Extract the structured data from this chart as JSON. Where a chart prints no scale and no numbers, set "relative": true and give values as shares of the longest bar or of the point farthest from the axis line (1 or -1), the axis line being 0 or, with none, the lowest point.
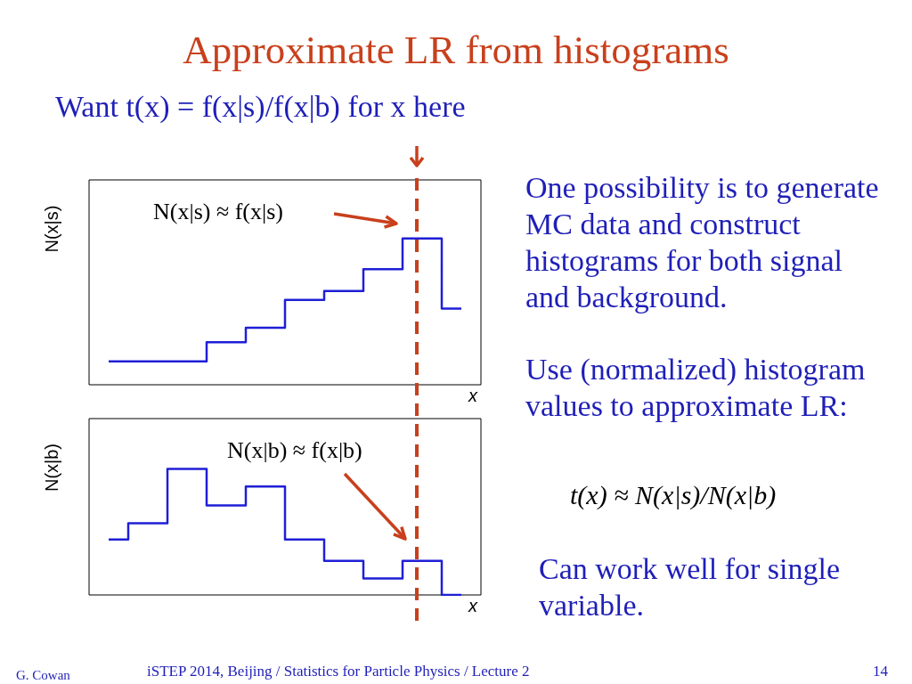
{
  "chart_data": [
    {
      "type": "step",
      "relative": true,
      "categories": [
        null,
        null,
        null,
        null,
        null,
        null,
        null,
        null,
        null,
        null
      ],
      "values": [
        0.16,
        0.16,
        0.16,
        0.29,
        0.39,
        0.58,
        0.64,
        0.79,
        1,
        0.52
      ],
      "color": "#1f1fd6",
      "ylabel": "N(x|s)",
      "xlabel": "x",
      "annotations": [
        "N(x|s) ≈ f(x|s)"
      ]
    },
    {
      "type": "step",
      "relative": true,
      "categories": [
        null,
        null,
        null,
        null,
        null,
        null,
        null,
        null,
        null,
        null
      ],
      "values": [
        0.44,
        0.57,
        1,
        0.71,
        0.86,
        0.44,
        0.27,
        0.13,
        0.27,
        0
      ],
      "color": "#1f1fd6",
      "ylabel": "N(x|b)",
      "xlabel": "x",
      "annotations": [
        "N(x|b) ≈ f(x|b)"
      ]
    },
    {
      "type": "other",
      "title": "Approximate LR from histograms",
      "annotations": [
        "Want t(x) = f(x|s)/f(x|b) for x here",
        "One possibility is to generate MC data and construct histograms for both signal and background.",
        "Use (normalized) histogram values to approximate LR:",
        "t(x) ≈ N(x|s)/N(x|b)",
        "Can work well for single variable.",
        "G. Cowan",
        "iSTEP 2014, Beijing / Statistics for Particle Physics / Lecture 2",
        "14"
      ]
    }
  ]
}
